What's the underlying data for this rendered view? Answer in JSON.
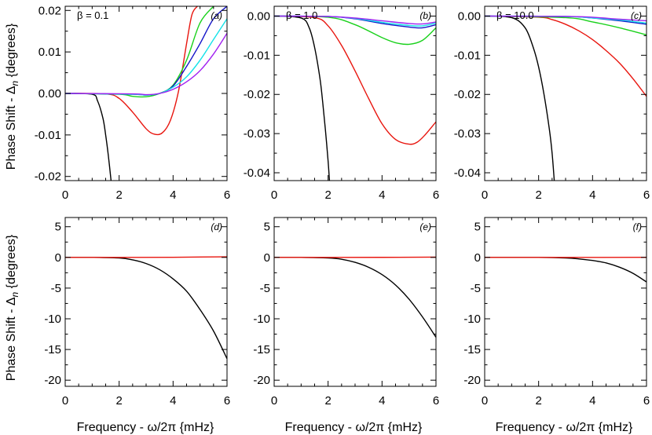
{
  "figure": {
    "ylabel_top": "Phase Shift - Δ",
    "ylabel_top_sub": "n",
    "ylabel_top_unit": " {degrees}",
    "ylabel_bottom": "Phase Shift - Δ",
    "ylabel_bottom_sub": "n",
    "ylabel_bottom_unit": " {degrees}",
    "xlabel": "Frequency - ω/2π {mHz}",
    "series_colors": {
      "black": "#000000",
      "red": "#e8150e",
      "green": "#19d11b",
      "cyan": "#14e2e8",
      "blue": "#1414c8",
      "purple": "#a020f0"
    }
  },
  "chart_data": [
    {
      "type": "line",
      "panel": "(a)",
      "annotation": "β = 0.1",
      "xlim": [
        0,
        6
      ],
      "ylim": [
        -0.021,
        0.021
      ],
      "xticks": [
        0,
        2,
        4,
        6
      ],
      "xtick_labels": [
        "0",
        "2",
        "4",
        "6"
      ],
      "yticks": [
        -0.02,
        -0.01,
        0.0,
        0.01,
        0.02
      ],
      "ytick_labels": [
        "-0.02",
        "-0.01",
        "0.00",
        "0.01",
        "0.02"
      ],
      "series": [
        {
          "color": "black",
          "x": [
            0,
            1.0,
            1.2,
            1.4,
            1.5,
            1.6,
            1.7
          ],
          "y": [
            0,
            -0.0002,
            -0.0018,
            -0.006,
            -0.01,
            -0.015,
            -0.021
          ]
        },
        {
          "color": "red",
          "x": [
            0,
            1.5,
            2.0,
            2.5,
            3.0,
            3.3,
            3.6,
            3.9,
            4.2,
            4.5,
            4.7,
            4.9
          ],
          "y": [
            0,
            -0.0001,
            -0.0012,
            -0.0045,
            -0.0085,
            -0.0098,
            -0.0095,
            -0.0065,
            0.0005,
            0.012,
            0.019,
            0.021
          ]
        },
        {
          "color": "green",
          "x": [
            0,
            2.0,
            2.5,
            3.0,
            3.5,
            4.0,
            4.5,
            5.0,
            5.5
          ],
          "y": [
            0,
            -0.0002,
            -0.0007,
            -0.0008,
            0.0,
            0.002,
            0.008,
            0.017,
            0.021
          ]
        },
        {
          "color": "blue",
          "x": [
            0,
            2.5,
            3.0,
            3.5,
            4.0,
            4.5,
            5.0,
            5.5,
            6.0
          ],
          "y": [
            0,
            -0.0002,
            -0.0004,
            0.0,
            0.0018,
            0.0065,
            0.012,
            0.018,
            0.021
          ]
        },
        {
          "color": "cyan",
          "x": [
            0,
            2.5,
            3.0,
            3.5,
            4.0,
            4.5,
            5.0,
            5.5,
            6.0
          ],
          "y": [
            0,
            -0.0002,
            -0.0004,
            0.0,
            0.0015,
            0.004,
            0.008,
            0.013,
            0.018
          ]
        },
        {
          "color": "purple",
          "x": [
            0,
            2.5,
            3.0,
            3.5,
            4.0,
            4.5,
            5.0,
            5.5,
            6.0
          ],
          "y": [
            0,
            -0.0001,
            -0.0003,
            0.0,
            0.001,
            0.0028,
            0.0055,
            0.0095,
            0.0145
          ]
        }
      ]
    },
    {
      "type": "line",
      "panel": "(b)",
      "annotation": "β = 1.0",
      "xlim": [
        0,
        6
      ],
      "ylim": [
        -0.042,
        0.0025
      ],
      "xticks": [
        0,
        2,
        4,
        6
      ],
      "xtick_labels": [
        "0",
        "2",
        "4",
        "6"
      ],
      "yticks": [
        -0.04,
        -0.03,
        -0.02,
        -0.01,
        0.0
      ],
      "ytick_labels": [
        "-0.04",
        "-0.03",
        "-0.02",
        "-0.01",
        "0.00"
      ],
      "series": [
        {
          "color": "black",
          "x": [
            0,
            1.0,
            1.3,
            1.5,
            1.7,
            1.8,
            1.9,
            2.0,
            2.05
          ],
          "y": [
            0,
            -0.0005,
            -0.003,
            -0.008,
            -0.016,
            -0.022,
            -0.029,
            -0.037,
            -0.042
          ]
        },
        {
          "color": "red",
          "x": [
            0,
            1.5,
            2.0,
            2.5,
            3.0,
            3.5,
            4.0,
            4.5,
            5.0,
            5.3,
            5.6,
            6.0
          ],
          "y": [
            0,
            -0.0004,
            -0.0025,
            -0.0075,
            -0.014,
            -0.021,
            -0.0275,
            -0.0315,
            -0.0327,
            -0.0322,
            -0.0303,
            -0.027
          ]
        },
        {
          "color": "green",
          "x": [
            0,
            2.0,
            3.0,
            4.0,
            4.5,
            5.0,
            5.5,
            6.0
          ],
          "y": [
            0,
            -0.0003,
            -0.0022,
            -0.0055,
            -0.0068,
            -0.0072,
            -0.0062,
            -0.003
          ]
        },
        {
          "color": "blue",
          "x": [
            0,
            2.0,
            3.0,
            4.0,
            5.0,
            5.5,
            6.0
          ],
          "y": [
            0,
            -0.0001,
            -0.0007,
            -0.0019,
            -0.0028,
            -0.003,
            -0.0022
          ]
        },
        {
          "color": "cyan",
          "x": [
            0,
            2.0,
            3.0,
            4.0,
            5.0,
            5.5,
            6.0
          ],
          "y": [
            0,
            -0.0001,
            -0.0006,
            -0.0016,
            -0.0024,
            -0.0025,
            -0.0018
          ]
        },
        {
          "color": "purple",
          "x": [
            0,
            2.0,
            3.0,
            4.0,
            5.0,
            5.5,
            6.0
          ],
          "y": [
            0,
            -0.0001,
            -0.0005,
            -0.0012,
            -0.0019,
            -0.002,
            -0.0015
          ]
        }
      ]
    },
    {
      "type": "line",
      "panel": "(c)",
      "annotation": "β = 10.0",
      "xlim": [
        0,
        6
      ],
      "ylim": [
        -0.042,
        0.0025
      ],
      "xticks": [
        0,
        2,
        4,
        6
      ],
      "xtick_labels": [
        "0",
        "2",
        "4",
        "6"
      ],
      "yticks": [
        -0.04,
        -0.03,
        -0.02,
        -0.01,
        0.0
      ],
      "ytick_labels": [
        "-0.04",
        "-0.03",
        "-0.02",
        "-0.01",
        "0.00"
      ],
      "series": [
        {
          "color": "black",
          "x": [
            0,
            1.0,
            1.5,
            1.8,
            2.0,
            2.2,
            2.4,
            2.5,
            2.58
          ],
          "y": [
            0,
            -0.0004,
            -0.003,
            -0.008,
            -0.013,
            -0.02,
            -0.029,
            -0.035,
            -0.042
          ]
        },
        {
          "color": "red",
          "x": [
            0,
            2.0,
            2.5,
            3.0,
            3.5,
            4.0,
            4.5,
            5.0,
            5.5,
            6.0
          ],
          "y": [
            0,
            -0.0003,
            -0.0009,
            -0.0021,
            -0.0038,
            -0.006,
            -0.0088,
            -0.012,
            -0.016,
            -0.0205
          ]
        },
        {
          "color": "green",
          "x": [
            0,
            3.0,
            4.0,
            5.0,
            6.0
          ],
          "y": [
            0,
            -0.0004,
            -0.0015,
            -0.003,
            -0.0048
          ]
        },
        {
          "color": "blue",
          "x": [
            0,
            3.0,
            4.0,
            5.0,
            6.0
          ],
          "y": [
            0,
            -0.0001,
            -0.0005,
            -0.0012,
            -0.0021
          ]
        },
        {
          "color": "cyan",
          "x": [
            0,
            3.0,
            4.0,
            5.0,
            6.0
          ],
          "y": [
            0,
            -0.0001,
            -0.0005,
            -0.001,
            -0.0018
          ]
        },
        {
          "color": "purple",
          "x": [
            0,
            3.0,
            4.0,
            5.0,
            6.0
          ],
          "y": [
            0,
            -0.0001,
            -0.0003,
            -0.0008,
            -0.0012
          ]
        }
      ]
    },
    {
      "type": "line",
      "panel": "(d)",
      "xlim": [
        0,
        6
      ],
      "ylim": [
        -21,
        6.5
      ],
      "xticks": [
        0,
        2,
        4,
        6
      ],
      "xtick_labels": [
        "0",
        "2",
        "4",
        "6"
      ],
      "yticks": [
        5,
        0,
        -5,
        -10,
        -15,
        -20
      ],
      "ytick_labels": [
        "5",
        "0",
        "-5",
        "-10",
        "-15",
        "-20"
      ],
      "series": [
        {
          "color": "black",
          "x": [
            0,
            1.0,
            2.0,
            2.5,
            3.0,
            3.5,
            4.0,
            4.5,
            5.0,
            5.5,
            6.0
          ],
          "y": [
            0,
            0,
            -0.1,
            -0.4,
            -1.0,
            -2.0,
            -3.5,
            -5.5,
            -8.5,
            -12.0,
            -16.5
          ]
        },
        {
          "color": "red",
          "x": [
            0,
            4.0,
            6.0
          ],
          "y": [
            0,
            0.02,
            0.1
          ]
        }
      ]
    },
    {
      "type": "line",
      "panel": "(e)",
      "xlim": [
        0,
        6
      ],
      "ylim": [
        -21,
        6.5
      ],
      "xticks": [
        0,
        2,
        4,
        6
      ],
      "xtick_labels": [
        "0",
        "2",
        "4",
        "6"
      ],
      "yticks": [
        5,
        0,
        -5,
        -10,
        -15,
        -20
      ],
      "ytick_labels": [
        "5",
        "0",
        "-5",
        "-10",
        "-15",
        "-20"
      ],
      "series": [
        {
          "color": "black",
          "x": [
            0,
            1.0,
            2.0,
            2.5,
            3.0,
            3.5,
            4.0,
            4.5,
            5.0,
            5.5,
            6.0
          ],
          "y": [
            0,
            0,
            -0.1,
            -0.3,
            -0.8,
            -1.6,
            -2.8,
            -4.5,
            -6.8,
            -9.7,
            -13.0
          ]
        },
        {
          "color": "red",
          "x": [
            0,
            4.0,
            6.0
          ],
          "y": [
            0,
            0.01,
            0.05
          ]
        }
      ]
    },
    {
      "type": "line",
      "panel": "(f)",
      "xlim": [
        0,
        6
      ],
      "ylim": [
        -21,
        6.5
      ],
      "xticks": [
        0,
        2,
        4,
        6
      ],
      "xtick_labels": [
        "0",
        "2",
        "4",
        "6"
      ],
      "yticks": [
        5,
        0,
        -5,
        -10,
        -15,
        -20
      ],
      "ytick_labels": [
        "5",
        "0",
        "-5",
        "-10",
        "-15",
        "-20"
      ],
      "series": [
        {
          "color": "black",
          "x": [
            0,
            2.0,
            3.0,
            3.5,
            4.0,
            4.5,
            5.0,
            5.5,
            6.0
          ],
          "y": [
            0,
            0,
            -0.1,
            -0.25,
            -0.5,
            -0.9,
            -1.6,
            -2.6,
            -4.0
          ]
        },
        {
          "color": "red",
          "x": [
            0,
            4.0,
            6.0
          ],
          "y": [
            0,
            0.0,
            0.02
          ]
        }
      ]
    }
  ]
}
